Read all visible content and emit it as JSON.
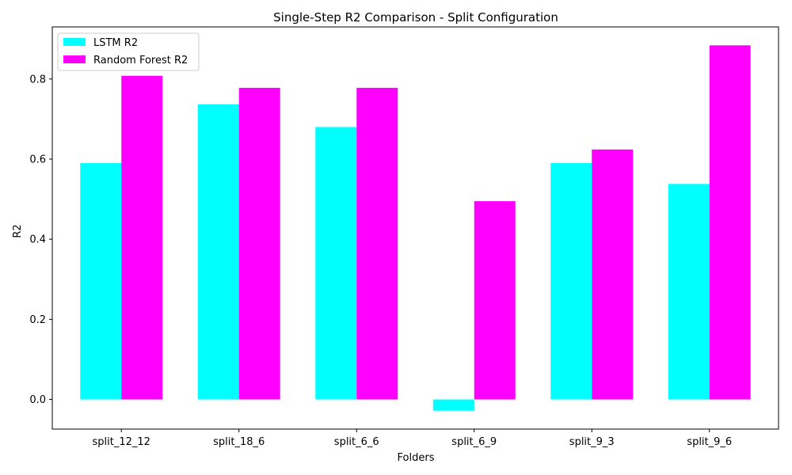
{
  "chart_data": {
    "type": "bar",
    "title": "Single-Step R2 Comparison - Split Configuration",
    "xlabel": "Folders",
    "ylabel": "R2",
    "categories": [
      "split_12_12",
      "split_18_6",
      "split_6_6",
      "split_6_9",
      "split_9_3",
      "split_9_6"
    ],
    "series": [
      {
        "name": "LSTM R2",
        "color": "#00ffff",
        "values": [
          0.59,
          0.737,
          0.68,
          -0.028,
          0.59,
          0.538
        ]
      },
      {
        "name": "Random Forest R2",
        "color": "#ff00ff",
        "values": [
          0.808,
          0.778,
          0.778,
          0.495,
          0.624,
          0.884
        ]
      }
    ],
    "ylim": [
      -0.074,
      0.93
    ],
    "yticks": [
      0.0,
      0.2,
      0.4,
      0.6,
      0.8
    ],
    "ytick_labels": [
      "0.0",
      "0.2",
      "0.4",
      "0.6",
      "0.8"
    ],
    "grid": false,
    "legend_position": "top-left"
  }
}
